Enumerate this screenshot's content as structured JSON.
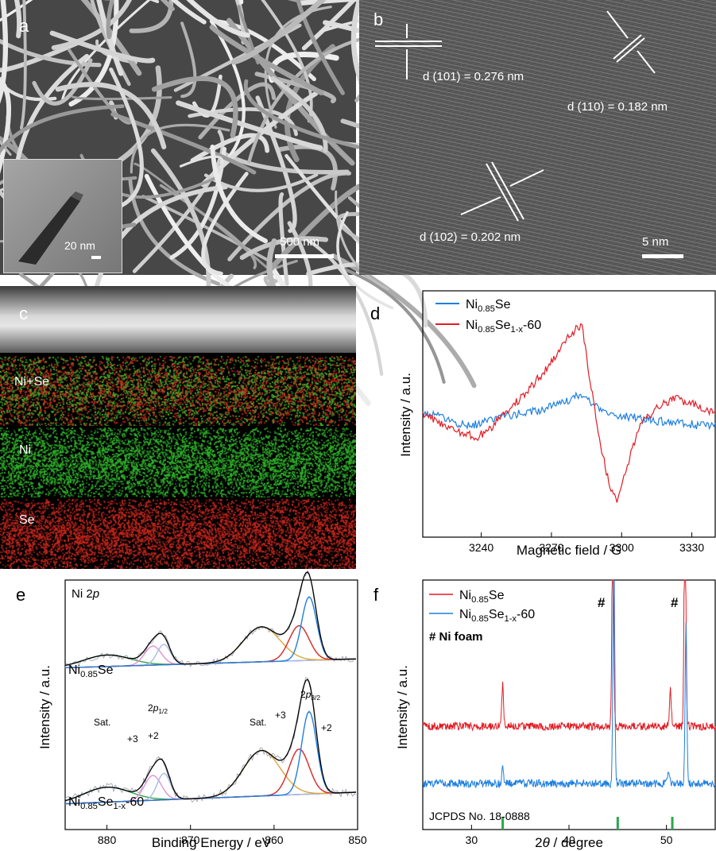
{
  "panel_a": {
    "label": "a",
    "scalebar": "500 nm",
    "inset_scalebar": "20 nm"
  },
  "panel_b": {
    "label": "b",
    "d101": "d (101) = 0.276 nm",
    "d110": "d (110) = 0.182 nm",
    "d102": "d (102) = 0.202 nm",
    "scalebar": "5 nm"
  },
  "panel_c": {
    "label": "c",
    "maps": [
      {
        "name": "Ni+Se",
        "colors": [
          "#c82a1c",
          "#3fae2a"
        ]
      },
      {
        "name": "Ni",
        "colors": [
          "#2fb12a"
        ]
      },
      {
        "name": "Se",
        "colors": [
          "#c4251c"
        ]
      }
    ]
  },
  "colors": {
    "blue": "#1f7fe0",
    "red": "#e31b23",
    "green": "#2aa84a",
    "black": "#000000"
  },
  "chart_data": [
    {
      "id": "d",
      "type": "line",
      "label": "d",
      "xlabel": "Magnetic field / G",
      "ylabel": "Intensity / a.u.",
      "xlim": [
        3215,
        3340
      ],
      "ylim": [
        -1,
        1
      ],
      "xticks": [
        3240,
        3270,
        3300,
        3330
      ],
      "legend": [
        "Ni0.85Se",
        "Ni0.85Se1-x-60"
      ],
      "series": [
        {
          "name": "Ni0.85Se",
          "color": "#1f7fe0",
          "x": [
            3215,
            3225,
            3235,
            3240,
            3245,
            3255,
            3265,
            3275,
            3282,
            3285,
            3290,
            3295,
            3300,
            3310,
            3320,
            3330,
            3340
          ],
          "y": [
            0.02,
            -0.05,
            -0.12,
            -0.08,
            -0.04,
            0.0,
            0.04,
            0.1,
            0.18,
            0.14,
            0.06,
            0.0,
            -0.02,
            -0.05,
            -0.08,
            -0.1,
            -0.12
          ]
        },
        {
          "name": "Ni0.85Se1-x-60",
          "color": "#e31b23",
          "x": [
            3215,
            3225,
            3232,
            3238,
            3243,
            3250,
            3258,
            3265,
            3272,
            3278,
            3283,
            3286,
            3290,
            3294,
            3298,
            3303,
            3308,
            3315,
            3322,
            3330,
            3340
          ],
          "y": [
            0.0,
            -0.12,
            -0.18,
            -0.22,
            -0.15,
            0.0,
            0.18,
            0.35,
            0.55,
            0.75,
            0.85,
            0.4,
            -0.2,
            -0.6,
            -0.85,
            -0.45,
            -0.1,
            0.05,
            0.15,
            0.1,
            0.0
          ]
        }
      ]
    },
    {
      "id": "e",
      "type": "line",
      "label": "e",
      "title": "Ni 2p",
      "xlabel": "Binding Energy / eV",
      "ylabel": "Intensity / a.u.",
      "xlim": [
        885,
        850
      ],
      "xticks": [
        880,
        870,
        860,
        850
      ],
      "annotations": [
        "Sat.",
        "+3",
        "+2",
        "2p1/2",
        "Sat.",
        "+3",
        "+2",
        "2p3/2"
      ],
      "sample_labels": [
        "Ni0.85Se",
        "Ni0.85Se1-x-60"
      ]
    },
    {
      "id": "f",
      "type": "line",
      "label": "f",
      "xlabel": "2θ / degree",
      "ylabel": "Intensity / a.u.",
      "xlim": [
        25,
        55
      ],
      "xticks": [
        30,
        40,
        50
      ],
      "legend": [
        "Ni0.85Se",
        "Ni0.85Se1-x-60"
      ],
      "legend_note": "# Ni foam",
      "marks": [
        "#",
        "#"
      ],
      "reference": "JCPDS No. 18-0888",
      "reference_peaks": [
        33.2,
        45.0,
        50.6
      ],
      "series": [
        {
          "name": "Ni0.85Se",
          "color": "#e31b23",
          "peaks": [
            [
              33.2,
              0.55
            ],
            [
              44.5,
              3.0
            ],
            [
              50.4,
              0.5
            ],
            [
              51.9,
              3.0
            ]
          ]
        },
        {
          "name": "Ni0.85Se1-x-60",
          "color": "#1f7fe0",
          "peaks": [
            [
              33.2,
              0.2
            ],
            [
              44.6,
              3.0
            ],
            [
              50.2,
              0.15
            ],
            [
              52.0,
              2.0
            ]
          ]
        }
      ]
    }
  ]
}
